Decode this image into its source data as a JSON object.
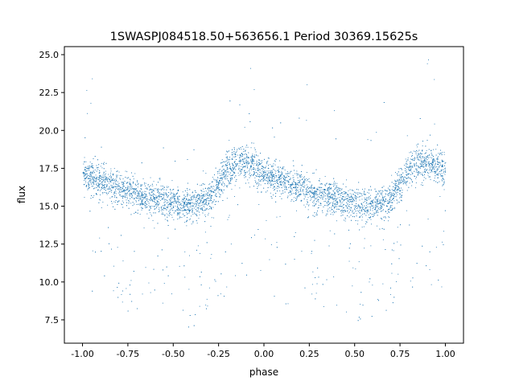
{
  "chart_data": {
    "type": "scatter",
    "title": "1SWASPJ084518.50+563656.1 Period 30369.15625s",
    "xlabel": "phase",
    "ylabel": "flux",
    "xlim": [
      -1.1,
      1.1
    ],
    "ylim": [
      5.96,
      25.53
    ],
    "xticks": [
      "-1.00",
      "-0.75",
      "-0.50",
      "-0.25",
      "0.00",
      "0.25",
      "0.50",
      "0.75",
      "1.00"
    ],
    "xtick_values": [
      -1.0,
      -0.75,
      -0.5,
      -0.25,
      0.0,
      0.25,
      0.5,
      0.75,
      1.0
    ],
    "yticks": [
      "7.5",
      "10.0",
      "12.5",
      "15.0",
      "17.5",
      "20.0",
      "22.5",
      "25.0"
    ],
    "ytick_values": [
      7.5,
      10.0,
      12.5,
      15.0,
      17.5,
      20.0,
      22.5,
      25.0
    ],
    "grid": false,
    "marker_color": "#1f77b4",
    "trend_phase": [
      -1.0,
      -0.9,
      -0.8,
      -0.7,
      -0.6,
      -0.5,
      -0.4,
      -0.3,
      -0.25,
      -0.2,
      -0.1,
      0.0,
      0.1,
      0.2,
      0.3,
      0.4,
      0.5,
      0.6,
      0.7,
      0.75,
      0.8,
      0.9,
      1.0
    ],
    "trend_flux": [
      17.2,
      16.6,
      16.2,
      15.8,
      15.5,
      15.2,
      15.0,
      15.5,
      16.5,
      17.5,
      18.0,
      17.2,
      16.6,
      16.2,
      15.8,
      15.5,
      15.2,
      15.0,
      15.5,
      16.5,
      17.5,
      18.0,
      17.2
    ]
  }
}
